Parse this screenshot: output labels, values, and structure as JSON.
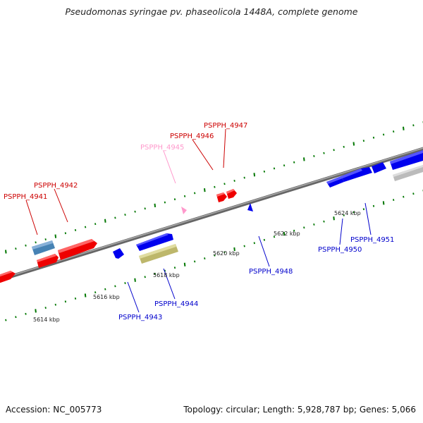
{
  "title": "Pseudomonas syringae pv. phaseolicola 1448A, complete genome",
  "accession": "Accession: NC_005773",
  "summary": "Topology: circular; Length: 5,928,787 bp; Genes: 5,066",
  "colors": {
    "forward": "#ff0000",
    "reverse": "#0000ee",
    "pseudo": "#ff99cc",
    "misc": "#4682b4",
    "rna": "#bdb76b",
    "gray": "#bbbbbb",
    "tick": "#007700",
    "backbone": "#777777"
  },
  "ticks": [
    {
      "label": "5614 kbp"
    },
    {
      "label": "5616 kbp"
    },
    {
      "label": "5618 kbp"
    },
    {
      "label": "5620 kbp"
    },
    {
      "label": "5622 kbp"
    },
    {
      "label": "5624 kbp"
    }
  ],
  "genes": [
    {
      "name": "PSPPH_4941",
      "strand": "forward"
    },
    {
      "name": "PSPPH_4942",
      "strand": "forward"
    },
    {
      "name": "PSPPH_4943",
      "strand": "reverse"
    },
    {
      "name": "PSPPH_4944",
      "strand": "reverse"
    },
    {
      "name": "PSPPH_4945",
      "strand": "pseudo"
    },
    {
      "name": "PSPPH_4946",
      "strand": "forward"
    },
    {
      "name": "PSPPH_4947",
      "strand": "forward"
    },
    {
      "name": "PSPPH_4948",
      "strand": "reverse"
    },
    {
      "name": "PSPPH_4950",
      "strand": "reverse"
    },
    {
      "name": "PSPPH_4951",
      "strand": "reverse"
    }
  ]
}
